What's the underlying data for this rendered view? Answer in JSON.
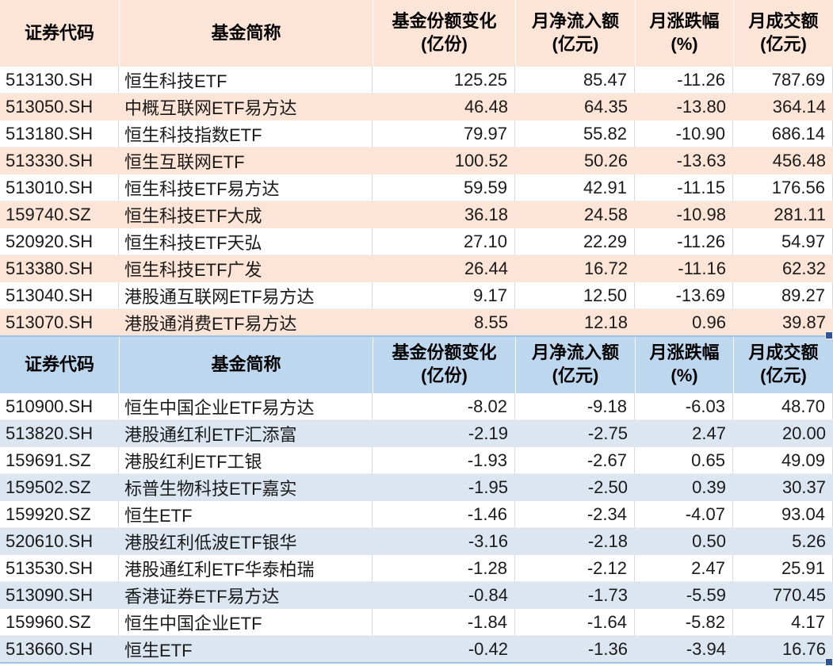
{
  "app": {
    "kind": "spreadsheet-fund-flow-tables",
    "colors": {
      "inflow_header_bg": "#fce4d6",
      "inflow_alt_row_bg": "#fce4d6",
      "outflow_header_bg": "#bdd7ee",
      "outflow_alt_row_bg": "#dce6f1",
      "selection_border": "#9dc3e6",
      "fill_handle": "#2f5597",
      "gridline": "#d9d9d9",
      "text": "#1a1a1a"
    }
  },
  "columns": [
    {
      "key": "code",
      "label": "证券代码",
      "unit": ""
    },
    {
      "key": "name",
      "label": "基金简称",
      "unit": ""
    },
    {
      "key": "share",
      "label": "基金份额变化",
      "unit": "(亿份)"
    },
    {
      "key": "inflow",
      "label": "月净流入额",
      "unit": "(亿元)"
    },
    {
      "key": "change",
      "label": "月涨跌幅",
      "unit": "(%)"
    },
    {
      "key": "volume",
      "label": "月成交额",
      "unit": "(亿元)"
    }
  ],
  "tables": [
    {
      "name": "monthly-inflow-table",
      "theme": "peach",
      "rows": [
        [
          "513130.SH",
          "恒生科技ETF",
          "125.25",
          "85.47",
          "-11.26",
          "787.69"
        ],
        [
          "513050.SH",
          "中概互联网ETF易方达",
          "46.48",
          "64.35",
          "-13.80",
          "364.14"
        ],
        [
          "513180.SH",
          "恒生科技指数ETF",
          "79.97",
          "55.82",
          "-10.90",
          "686.14"
        ],
        [
          "513330.SH",
          "恒生互联网ETF",
          "100.52",
          "50.26",
          "-13.63",
          "456.48"
        ],
        [
          "513010.SH",
          "恒生科技ETF易方达",
          "59.59",
          "42.91",
          "-11.15",
          "176.56"
        ],
        [
          "159740.SZ",
          "恒生科技ETF大成",
          "36.18",
          "24.58",
          "-10.98",
          "281.11"
        ],
        [
          "520920.SH",
          "恒生科技ETF天弘",
          "27.10",
          "22.29",
          "-11.26",
          "54.97"
        ],
        [
          "513380.SH",
          "恒生科技ETF广发",
          "26.44",
          "16.72",
          "-11.16",
          "62.32"
        ],
        [
          "513040.SH",
          "港股通互联网ETF易方达",
          "9.17",
          "12.50",
          "-13.69",
          "89.27"
        ],
        [
          "513070.SH",
          "港股通消费ETF易方达",
          "8.55",
          "12.18",
          "0.96",
          "39.87"
        ]
      ]
    },
    {
      "name": "monthly-outflow-table",
      "theme": "blue",
      "rows": [
        [
          "510900.SH",
          "恒生中国企业ETF易方达",
          "-8.02",
          "-9.18",
          "-6.03",
          "48.70"
        ],
        [
          "513820.SH",
          "港股通红利ETF汇添富",
          "-2.19",
          "-2.75",
          "2.47",
          "20.00"
        ],
        [
          "159691.SZ",
          "港股红利ETF工银",
          "-1.93",
          "-2.67",
          "0.65",
          "49.09"
        ],
        [
          "159502.SZ",
          "标普生物科技ETF嘉实",
          "-1.95",
          "-2.50",
          "0.39",
          "30.37"
        ],
        [
          "159920.SZ",
          "恒生ETF",
          "-1.46",
          "-2.34",
          "-4.07",
          "93.04"
        ],
        [
          "520610.SH",
          "港股红利低波ETF银华",
          "-3.16",
          "-2.18",
          "0.50",
          "5.26"
        ],
        [
          "513530.SH",
          "港股通红利ETF华泰柏瑞",
          "-1.28",
          "-2.12",
          "2.47",
          "25.91"
        ],
        [
          "513090.SH",
          "香港证券ETF易方达",
          "-0.84",
          "-1.73",
          "-5.59",
          "770.45"
        ],
        [
          "159960.SZ",
          "恒生中国企业ETF",
          "-1.84",
          "-1.64",
          "-5.82",
          "4.17"
        ],
        [
          "513660.SH",
          "恒生ETF",
          "-0.42",
          "-1.36",
          "-3.94",
          "16.76"
        ]
      ]
    }
  ]
}
